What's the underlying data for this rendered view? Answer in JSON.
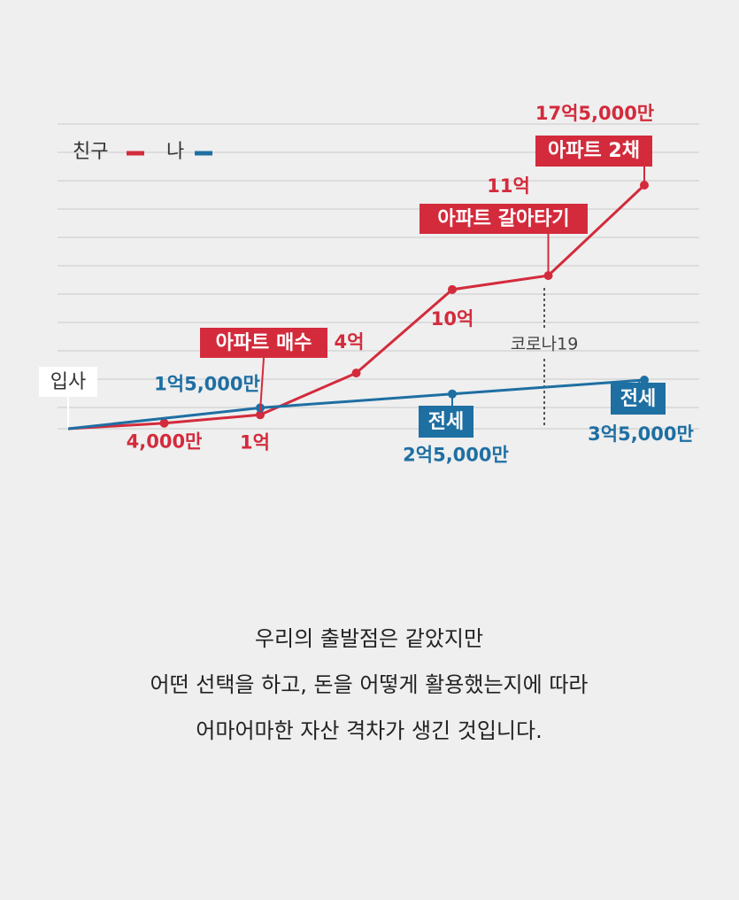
{
  "chart_data": {
    "type": "line",
    "legend_corner": "top-left",
    "start_label": "입사",
    "series": [
      {
        "name": "친구",
        "color": "#d32b3c",
        "values": [
          0,
          4000,
          10000,
          40000,
          100000,
          110000,
          175000
        ],
        "value_labels": [
          null,
          "4,000만",
          "1억",
          "4억",
          "10억",
          "11억",
          "17억5,000만"
        ]
      },
      {
        "name": "나",
        "color": "#1e6fa2",
        "values": [
          0,
          15000,
          25000,
          35000
        ],
        "value_labels": [
          null,
          "1억5,000만",
          "2억5,000만",
          "3억5,000만"
        ]
      }
    ],
    "ylim": [
      0,
      175000
    ],
    "annotations": [
      "아파트 매수",
      "아파트 갈아타기",
      "아파트 2채",
      "전세",
      "전세",
      "코로나19"
    ],
    "caption": [
      "우리의 출발점은 같았지만",
      "어떤 선택을 하고, 돈을 어떻게 활용했는지에 따라",
      "어마어마한 자산 격차가 생긴 것입니다."
    ]
  }
}
